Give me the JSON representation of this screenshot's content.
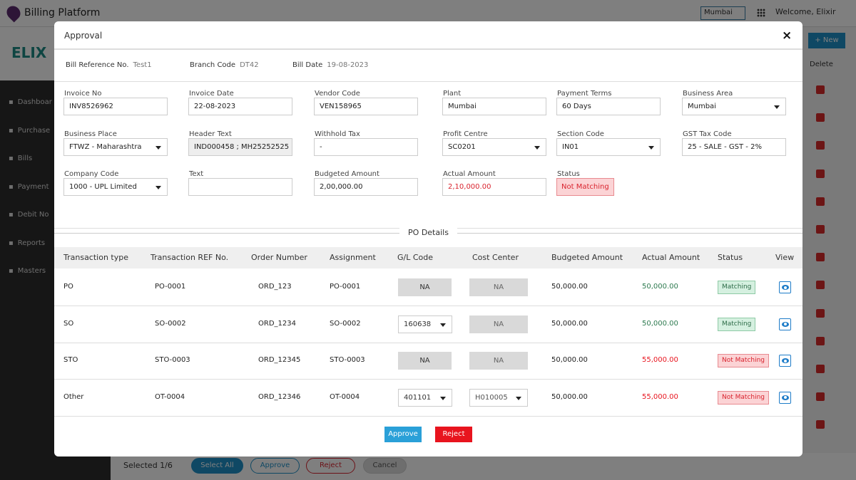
{
  "app": {
    "title": "Billing Platform",
    "city": "Mumbai",
    "welcome": "Welcome, Elixir",
    "logo": "ELIX"
  },
  "sidebar": [
    "Dashboar",
    "Purchase",
    "Bills",
    "Payment",
    "Debit No",
    "Reports",
    "Masters"
  ],
  "background": {
    "new_button": "+ New",
    "delete_header": "Delete",
    "selected": "Selected 1/6",
    "select_all": "Select All",
    "approve": "Approve",
    "reject": "Reject",
    "cancel": "Cancel"
  },
  "modal": {
    "title": "Approval",
    "close": "×",
    "meta": [
      {
        "label": "Bill Reference  No.",
        "value": "Test1"
      },
      {
        "label": "Branch Code",
        "value": "DT42"
      },
      {
        "label": "Bill Date",
        "value": "19-08-2023"
      }
    ],
    "fields": [
      {
        "label": "Invoice No",
        "value": "INV8526962"
      },
      {
        "label": "Invoice Date",
        "value": "22-08-2023"
      },
      {
        "label": "Vendor Code",
        "value": "VEN158965"
      },
      {
        "label": "Plant",
        "value": "Mumbai"
      },
      {
        "label": "Payment Terms",
        "value": "60 Days"
      },
      {
        "label": "Business Area",
        "value": "Mumbai"
      },
      {
        "label": "Business Place",
        "value": "FTWZ - Maharashtra"
      },
      {
        "label": "Header Text",
        "value": "IND000458 ; MH25252525"
      },
      {
        "label": "Withhold Tax",
        "value": "-"
      },
      {
        "label": "Profit Centre",
        "value": "SC0201"
      },
      {
        "label": "Section Code",
        "value": "IN01"
      },
      {
        "label": "GST Tax Code",
        "value": "25 - SALE - GST - 2%"
      },
      {
        "label": "Company Code",
        "value": "1000 - UPL Limited"
      },
      {
        "label": "Text",
        "value": ""
      },
      {
        "label": "Budgeted Amount",
        "value": "2,00,000.00"
      },
      {
        "label": "Actual Amount",
        "value": "2,10,000.00"
      },
      {
        "label": "Status",
        "value": "Not Matching"
      }
    ],
    "po_title": "PO Details",
    "columns": [
      "Transaction type",
      "Transaction REF No.",
      "Order Number",
      "Assignment",
      "G/L Code",
      "Cost Center",
      "Budgeted Amount",
      "Actual Amount",
      "Status",
      "View"
    ],
    "rows": [
      {
        "type": "PO",
        "ref": "PO-0001",
        "order": "ORD_123",
        "assign": "PO-0001",
        "gl": "NA",
        "cc": "NA",
        "budget": "50,000.00",
        "actual": "50,000.00",
        "status": "Matching"
      },
      {
        "type": "SO",
        "ref": "SO-0002",
        "order": "ORD_1234",
        "assign": "SO-0002",
        "gl": "160638",
        "cc": "NA",
        "budget": "50,000.00",
        "actual": "50,000.00",
        "status": "Matching"
      },
      {
        "type": "STO",
        "ref": "STO-0003",
        "order": "ORD_12345",
        "assign": "STO-0003",
        "gl": "NA",
        "cc": "NA",
        "budget": "50,000.00",
        "actual": "55,000.00",
        "status": "Not Matching"
      },
      {
        "type": "Other",
        "ref": "OT-0004",
        "order": "ORD_12346",
        "assign": "OT-0004",
        "gl": "401101",
        "cc": "H010005",
        "budget": "50,000.00",
        "actual": "55,000.00",
        "status": "Not Matching"
      }
    ],
    "approve": "Approve",
    "reject": "Reject"
  },
  "colors": {
    "accent": "#1e90c8",
    "danger": "#e8141e",
    "ok": "#2d7a4f"
  }
}
